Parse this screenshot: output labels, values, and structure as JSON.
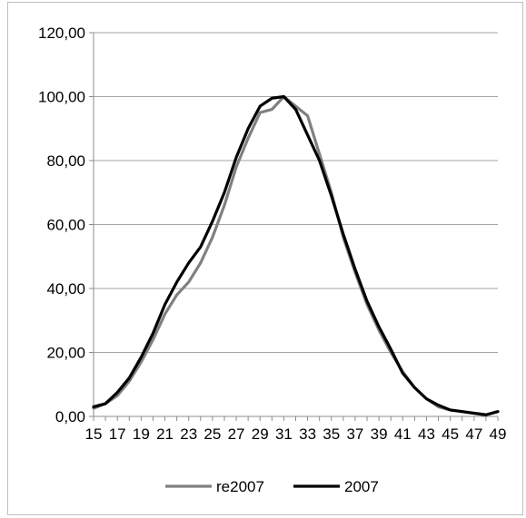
{
  "chart_data": {
    "type": "line",
    "title": "",
    "xlabel": "",
    "ylabel": "",
    "x": [
      15,
      16,
      17,
      18,
      19,
      20,
      21,
      22,
      23,
      24,
      25,
      26,
      27,
      28,
      29,
      30,
      31,
      32,
      33,
      34,
      35,
      36,
      37,
      38,
      39,
      40,
      41,
      42,
      43,
      44,
      45,
      46,
      47,
      48,
      49
    ],
    "x_tick_labels": [
      "15",
      "17",
      "19",
      "21",
      "23",
      "25",
      "27",
      "29",
      "31",
      "33",
      "35",
      "37",
      "39",
      "41",
      "43",
      "45",
      "47",
      "49"
    ],
    "y_tick_labels": [
      "0,00",
      "20,00",
      "40,00",
      "60,00",
      "80,00",
      "100,00",
      "120,00"
    ],
    "ylim": [
      0,
      120
    ],
    "y_major_step": 20,
    "grid": "horizontal",
    "legend_position": "bottom",
    "series": [
      {
        "name": "re2007",
        "color": "#808080",
        "values": [
          2.5,
          4,
          6.5,
          11,
          17,
          24,
          32,
          38,
          42,
          48,
          56,
          66,
          78,
          87,
          95,
          96,
          100,
          97,
          94,
          82,
          70,
          56,
          45,
          35,
          27,
          20,
          14,
          9,
          5.5,
          3,
          2,
          1.5,
          1,
          0.5,
          1.5
        ]
      },
      {
        "name": "2007",
        "color": "#000000",
        "values": [
          3,
          4,
          7.5,
          12,
          18.5,
          26,
          35,
          42,
          48,
          53,
          61,
          70,
          81,
          90,
          97,
          99.5,
          100,
          96,
          88,
          80,
          69,
          57,
          46,
          36,
          28,
          21,
          13.5,
          9,
          5.5,
          3.5,
          2,
          1.5,
          1,
          0.5,
          1.5
        ]
      }
    ]
  }
}
